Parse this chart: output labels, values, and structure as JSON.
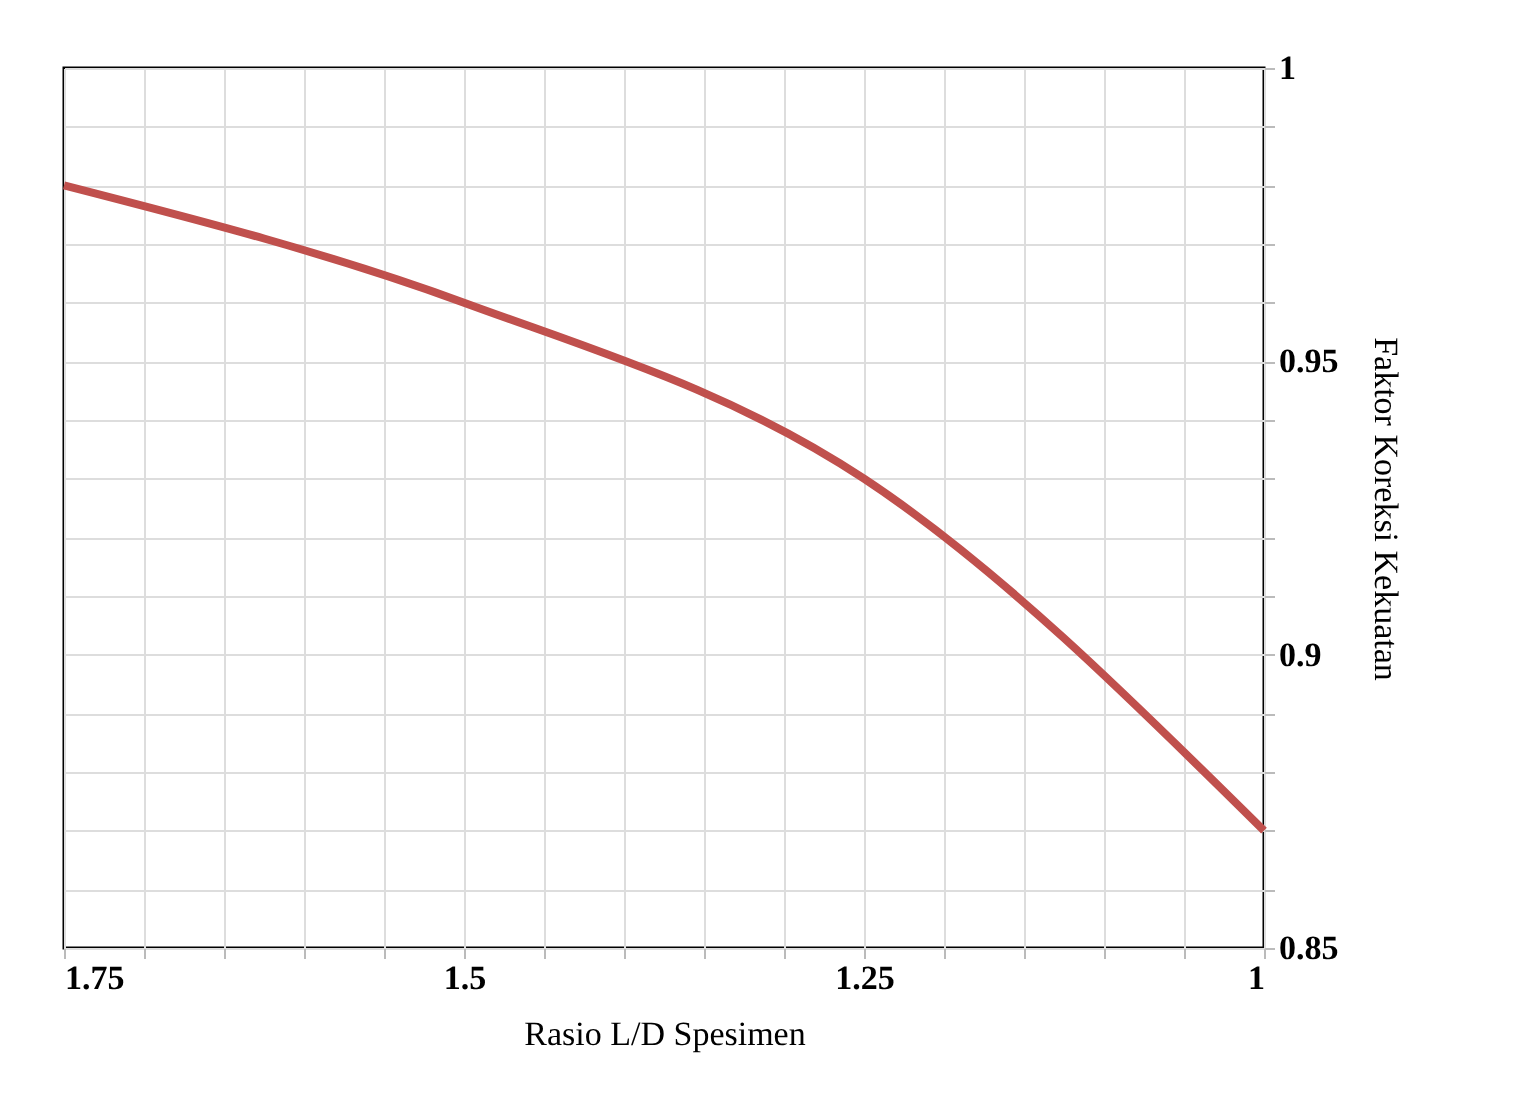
{
  "chart_data": {
    "type": "line",
    "xlabel": "Rasio L/D Spesimen",
    "ylabel": "Faktor Koreksi Kekuatan",
    "x": [
      1.75,
      1.5,
      1.25,
      1.0
    ],
    "series": [
      {
        "color": "#c0504d",
        "values": [
          0.98,
          0.96,
          0.93,
          0.87
        ]
      }
    ],
    "xlim": [
      1.75,
      1.0
    ],
    "xticks": [
      1.75,
      {
        "value": 1.7,
        "label": null
      },
      {
        "value": 1.65,
        "label": null
      },
      {
        "value": 1.6,
        "label": null
      },
      {
        "value": 1.55,
        "label": null
      },
      1.5,
      {
        "value": 1.45,
        "label": null
      },
      {
        "value": 1.4,
        "label": null
      },
      {
        "value": 1.35,
        "label": null
      },
      {
        "value": 1.3,
        "label": null
      },
      1.25,
      {
        "value": 1.2,
        "label": null
      },
      {
        "value": 1.15,
        "label": null
      },
      {
        "value": 1.1,
        "label": null
      },
      {
        "value": 1.05,
        "label": null
      },
      1
    ],
    "ylim": [
      0.85,
      1.0
    ],
    "yticks": [
      0.85,
      {
        "value": 0.86,
        "label": null
      },
      {
        "value": 0.87,
        "label": null
      },
      {
        "value": 0.88,
        "label": null
      },
      {
        "value": 0.89,
        "label": null
      },
      0.9,
      {
        "value": 0.91,
        "label": null
      },
      {
        "value": 0.92,
        "label": null
      },
      {
        "value": 0.93,
        "label": null
      },
      {
        "value": 0.94,
        "label": null
      },
      0.95,
      {
        "value": 0.96,
        "label": null
      },
      {
        "value": 0.97,
        "label": null
      },
      {
        "value": 0.98,
        "label": null
      },
      {
        "value": 0.99,
        "label": null
      },
      1
    ],
    "grid": true,
    "line_style": "solid"
  }
}
